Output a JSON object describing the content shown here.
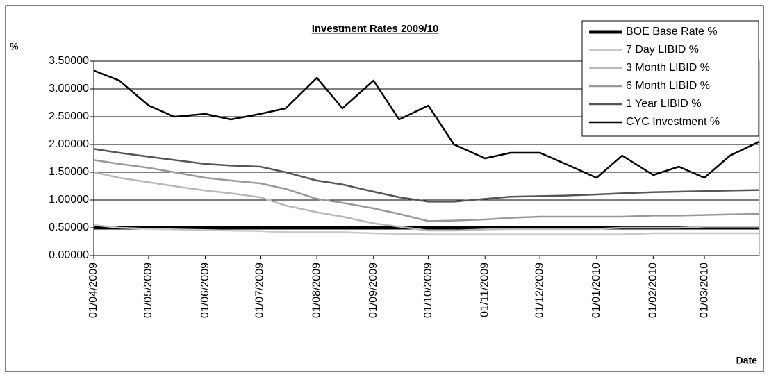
{
  "chart_data": {
    "type": "line",
    "title": "Investment Rates 2009/10",
    "x_label": "Date",
    "y_label": "%",
    "x": [
      "01/04/2009",
      "15/04/2009",
      "01/05/2009",
      "15/05/2009",
      "01/06/2009",
      "15/06/2009",
      "01/07/2009",
      "15/07/2009",
      "01/08/2009",
      "15/08/2009",
      "01/09/2009",
      "15/09/2009",
      "01/10/2009",
      "15/10/2009",
      "01/11/2009",
      "15/11/2009",
      "01/12/2009",
      "15/12/2009",
      "01/01/2010",
      "15/01/2010",
      "01/02/2010",
      "15/02/2010",
      "01/03/2010",
      "15/03/2010",
      "31/03/2010"
    ],
    "xlim": [
      "01/04/2009",
      "31/03/2010"
    ],
    "xticks": [
      "01/04/2009",
      "01/05/2009",
      "01/06/2009",
      "01/07/2009",
      "01/08/2009",
      "01/09/2009",
      "01/10/2009",
      "01/11/2009",
      "01/12/2009",
      "01/01/2010",
      "01/02/2010",
      "01/03/2010"
    ],
    "ylim": [
      0,
      3.5
    ],
    "yticks": [
      {
        "value": 0,
        "label": "0.00000"
      },
      {
        "value": 0.5,
        "label": "0.50000"
      },
      {
        "value": 1,
        "label": "1.00000"
      },
      {
        "value": 1.5,
        "label": "1.50000"
      },
      {
        "value": 2,
        "label": "2.00000"
      },
      {
        "value": 2.5,
        "label": "2.50000"
      },
      {
        "value": 3,
        "label": "3.00000"
      },
      {
        "value": 3.5,
        "label": "3.50000"
      }
    ],
    "grid": true,
    "legend": "upper right",
    "series": [
      {
        "name": "BOE Base Rate %",
        "color": "#000000",
        "values": [
          0.5,
          0.5,
          0.5,
          0.5,
          0.5,
          0.5,
          0.5,
          0.5,
          0.5,
          0.5,
          0.5,
          0.5,
          0.5,
          0.5,
          0.5,
          0.5,
          0.5,
          0.5,
          0.5,
          0.5,
          0.5,
          0.5,
          0.5,
          0.5,
          0.5
        ]
      },
      {
        "name": "7 Day LIBID %",
        "color": "#c8c8c8",
        "values": [
          0.55,
          0.5,
          0.48,
          0.47,
          0.46,
          0.45,
          0.44,
          0.42,
          0.42,
          0.42,
          0.4,
          0.39,
          0.38,
          0.38,
          0.38,
          0.38,
          0.38,
          0.38,
          0.38,
          0.38,
          0.4,
          0.4,
          0.4,
          0.4,
          0.4
        ]
      },
      {
        "name": "3 Month LIBID %",
        "color": "#b8b8b8",
        "values": [
          1.5,
          1.4,
          1.32,
          1.25,
          1.17,
          1.12,
          1.05,
          0.9,
          0.78,
          0.7,
          0.58,
          0.52,
          0.45,
          0.45,
          0.47,
          0.48,
          0.48,
          0.48,
          0.48,
          0.5,
          0.5,
          0.5,
          0.52,
          0.52,
          0.52
        ]
      },
      {
        "name": "6 Month LIBID %",
        "color": "#999999",
        "values": [
          1.72,
          1.65,
          1.58,
          1.5,
          1.4,
          1.35,
          1.3,
          1.2,
          1.02,
          0.95,
          0.85,
          0.75,
          0.62,
          0.63,
          0.65,
          0.68,
          0.7,
          0.7,
          0.7,
          0.7,
          0.72,
          0.72,
          0.73,
          0.74,
          0.75
        ]
      },
      {
        "name": "1 Year LIBID %",
        "color": "#555555",
        "values": [
          1.92,
          1.85,
          1.78,
          1.72,
          1.65,
          1.62,
          1.6,
          1.5,
          1.35,
          1.28,
          1.15,
          1.05,
          0.97,
          0.97,
          1.02,
          1.06,
          1.07,
          1.08,
          1.1,
          1.12,
          1.14,
          1.15,
          1.16,
          1.17,
          1.18
        ]
      },
      {
        "name": "CYC Investment %",
        "color": "#000000",
        "values": [
          3.33,
          3.15,
          2.7,
          2.5,
          2.55,
          2.45,
          2.55,
          2.65,
          3.2,
          2.65,
          3.15,
          2.45,
          2.7,
          2.0,
          1.75,
          1.85,
          1.85,
          1.65,
          1.4,
          1.8,
          1.45,
          1.6,
          1.4,
          1.8,
          2.05
        ]
      }
    ]
  }
}
